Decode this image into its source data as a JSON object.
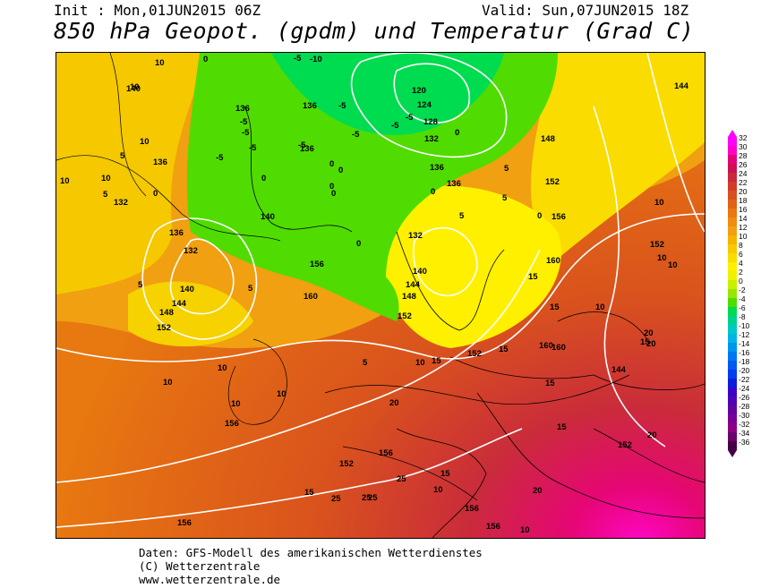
{
  "header": {
    "init": "Init : Mon,01JUN2015 06Z",
    "valid": "Valid: Sun,07JUN2015 18Z",
    "title": "850 hPa Geopot. (gpdm) und Temperatur (Grad C)"
  },
  "scale": {
    "values": [
      "32",
      "30",
      "28",
      "26",
      "24",
      "22",
      "20",
      "18",
      "16",
      "14",
      "12",
      "10",
      "8",
      "6",
      "4",
      "2",
      "0",
      "-2",
      "-4",
      "-6",
      "-8",
      "-10",
      "-12",
      "-14",
      "-16",
      "-18",
      "-20",
      "-22",
      "-24",
      "-26",
      "-28",
      "-30",
      "-32",
      "-34",
      "-36"
    ],
    "colors": [
      "#ff00ff",
      "#ff00c8",
      "#e6007a",
      "#cc1050",
      "#c8283c",
      "#d23c28",
      "#d8501e",
      "#e06414",
      "#e87810",
      "#f08c10",
      "#f0a010",
      "#f5b400",
      "#f8c800",
      "#fadc00",
      "#fff000",
      "#f0f000",
      "#c8f000",
      "#96e600",
      "#50dc00",
      "#00dc50",
      "#00d28c",
      "#00c8c8",
      "#00b4e6",
      "#0096f0",
      "#0078f0",
      "#005af0",
      "#003cf0",
      "#0a1edc",
      "#3c00c8",
      "#5000b4",
      "#6400a0",
      "#780096",
      "#8c0082",
      "#6e006e",
      "#460046"
    ]
  },
  "map": {
    "geopotential_labels": [
      "140",
      "132",
      "136",
      "136",
      "136",
      "140",
      "136",
      "132",
      "140",
      "144",
      "148",
      "152",
      "120",
      "124",
      "128",
      "132",
      "136",
      "136",
      "136",
      "148",
      "152",
      "132",
      "140",
      "144",
      "148",
      "152",
      "156",
      "160",
      "156",
      "160",
      "160",
      "152",
      "160",
      "144",
      "152",
      "144",
      "152",
      "156",
      "156",
      "152",
      "156",
      "156",
      "156"
    ],
    "temperature_labels": [
      "10",
      "10",
      "10",
      "5",
      "10",
      "10",
      "5",
      "0",
      "0",
      "-5",
      "-5",
      "-5",
      "-5",
      "-5",
      "-10",
      "-5",
      "-5",
      "-5",
      "-5",
      "-5",
      "0",
      "0",
      "0",
      "0",
      "0",
      "0",
      "0",
      "0",
      "0",
      "5",
      "5",
      "5",
      "5",
      "5",
      "5",
      "10",
      "10",
      "10",
      "10",
      "10",
      "10",
      "15",
      "15",
      "15",
      "15",
      "15",
      "15",
      "15",
      "15",
      "15",
      "20",
      "20",
      "20",
      "20",
      "20",
      "25",
      "25",
      "25",
      "25",
      "15",
      "10",
      "10",
      "10",
      "10",
      "10"
    ]
  },
  "footer": {
    "line1": "Daten: GFS-Modell des amerikanischen Wetterdienstes",
    "line2": "(C) Wetterzentrale",
    "line3": "www.wetterzentrale.de"
  }
}
